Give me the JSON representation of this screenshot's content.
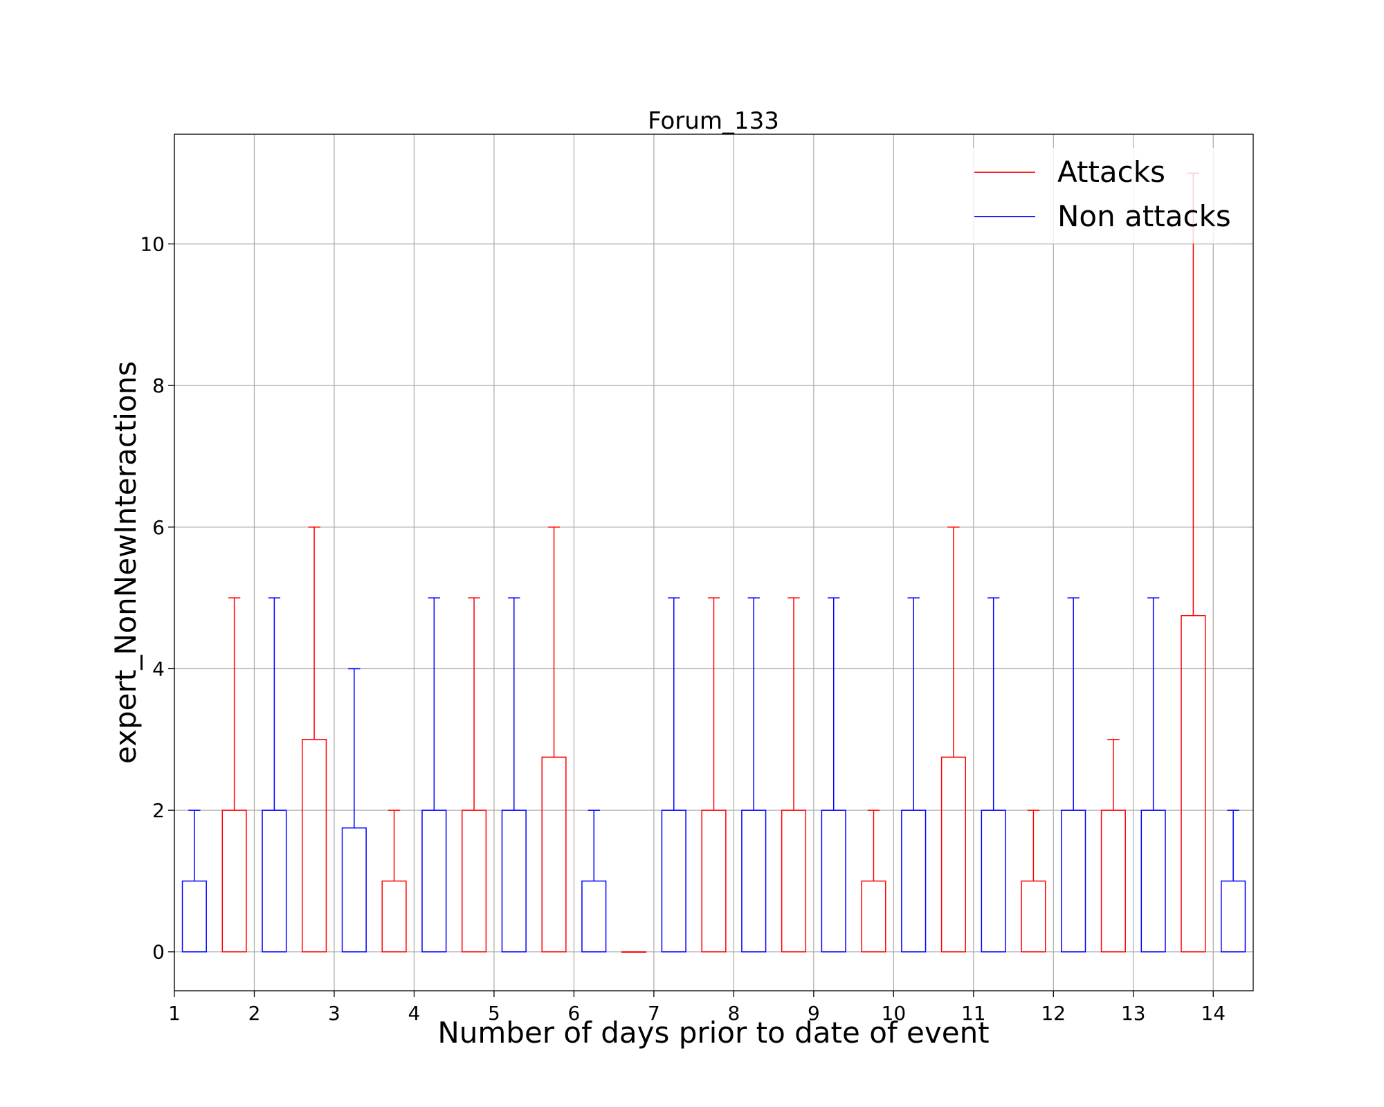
{
  "chart_data": {
    "type": "box",
    "title": "Forum_133",
    "xlabel": "Number of days prior to date of event",
    "ylabel": "expert_NonNewInteractions",
    "xticks": [
      "1",
      "2",
      "3",
      "4",
      "5",
      "6",
      "7",
      "8",
      "9",
      "10",
      "11",
      "12",
      "13",
      "14"
    ],
    "yticks": [
      "0",
      "2",
      "4",
      "6",
      "8",
      "10"
    ],
    "xlim": [
      1,
      14.5
    ],
    "ylim": [
      -0.55,
      11.55
    ],
    "grid": true,
    "legend_position": "top-right",
    "series": [
      {
        "name": "Attacks",
        "color": "#ff0000",
        "offset": -0.25,
        "boxes": [
          {
            "day": 2,
            "q1": 0,
            "q3": 2,
            "whisker_low": 0,
            "whisker_high": 5
          },
          {
            "day": 3,
            "q1": 0,
            "q3": 3,
            "whisker_low": 0,
            "whisker_high": 6
          },
          {
            "day": 4,
            "q1": 0,
            "q3": 1,
            "whisker_low": 0,
            "whisker_high": 2
          },
          {
            "day": 5,
            "q1": 0,
            "q3": 2,
            "whisker_low": 0,
            "whisker_high": 5
          },
          {
            "day": 6,
            "q1": 0,
            "q3": 2.75,
            "whisker_low": 0,
            "whisker_high": 6
          },
          {
            "day": 7,
            "q1": 0,
            "q3": 0,
            "whisker_low": 0,
            "whisker_high": 0
          },
          {
            "day": 8,
            "q1": 0,
            "q3": 2,
            "whisker_low": 0,
            "whisker_high": 5
          },
          {
            "day": 9,
            "q1": 0,
            "q3": 2,
            "whisker_low": 0,
            "whisker_high": 5
          },
          {
            "day": 10,
            "q1": 0,
            "q3": 1,
            "whisker_low": 0,
            "whisker_high": 2
          },
          {
            "day": 11,
            "q1": 0,
            "q3": 2.75,
            "whisker_low": 0,
            "whisker_high": 6
          },
          {
            "day": 12,
            "q1": 0,
            "q3": 1,
            "whisker_low": 0,
            "whisker_high": 2
          },
          {
            "day": 13,
            "q1": 0,
            "q3": 2,
            "whisker_low": 0,
            "whisker_high": 3
          },
          {
            "day": 14,
            "q1": 0,
            "q3": 4.75,
            "whisker_low": 0,
            "whisker_high": 11
          }
        ]
      },
      {
        "name": "Non attacks",
        "color": "#0000ff",
        "offset": 0.25,
        "boxes": [
          {
            "day": 1,
            "q1": 0,
            "q3": 1,
            "whisker_low": 0,
            "whisker_high": 2
          },
          {
            "day": 2,
            "q1": 0,
            "q3": 2,
            "whisker_low": 0,
            "whisker_high": 5
          },
          {
            "day": 3,
            "q1": 0,
            "q3": 1.75,
            "whisker_low": 0,
            "whisker_high": 4
          },
          {
            "day": 4,
            "q1": 0,
            "q3": 2,
            "whisker_low": 0,
            "whisker_high": 5
          },
          {
            "day": 5,
            "q1": 0,
            "q3": 2,
            "whisker_low": 0,
            "whisker_high": 5
          },
          {
            "day": 6,
            "q1": 0,
            "q3": 1,
            "whisker_low": 0,
            "whisker_high": 2
          },
          {
            "day": 7,
            "q1": 0,
            "q3": 2,
            "whisker_low": 0,
            "whisker_high": 5
          },
          {
            "day": 8,
            "q1": 0,
            "q3": 2,
            "whisker_low": 0,
            "whisker_high": 5
          },
          {
            "day": 9,
            "q1": 0,
            "q3": 2,
            "whisker_low": 0,
            "whisker_high": 5
          },
          {
            "day": 10,
            "q1": 0,
            "q3": 2,
            "whisker_low": 0,
            "whisker_high": 5
          },
          {
            "day": 11,
            "q1": 0,
            "q3": 2,
            "whisker_low": 0,
            "whisker_high": 5
          },
          {
            "day": 12,
            "q1": 0,
            "q3": 2,
            "whisker_low": 0,
            "whisker_high": 5
          },
          {
            "day": 13,
            "q1": 0,
            "q3": 2,
            "whisker_low": 0,
            "whisker_high": 5
          },
          {
            "day": 14,
            "q1": 0,
            "q3": 1,
            "whisker_low": 0,
            "whisker_high": 2
          }
        ]
      }
    ]
  }
}
